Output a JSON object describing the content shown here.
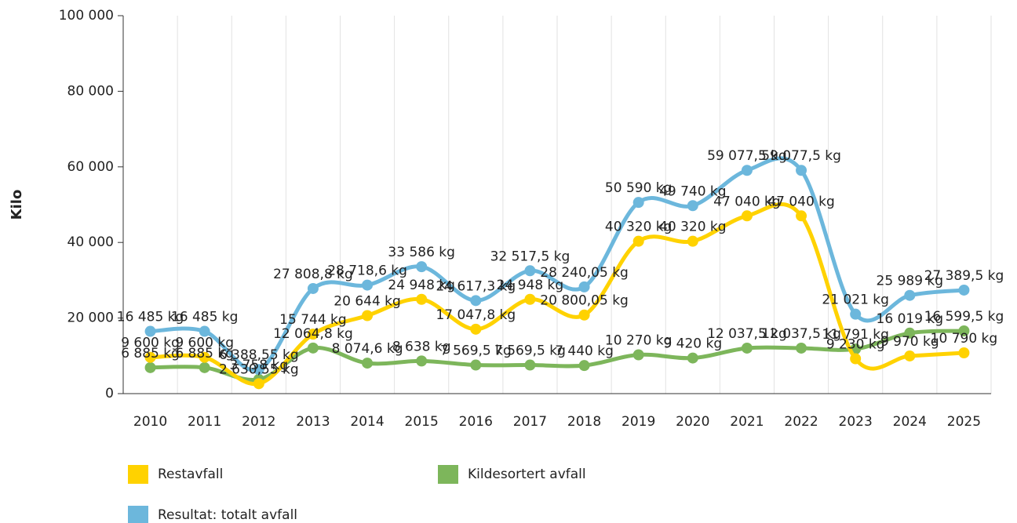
{
  "chart_data": {
    "type": "line",
    "y_label": "Kilo",
    "categories": [
      "2010",
      "2011",
      "2012",
      "2013",
      "2014",
      "2015",
      "2016",
      "2017",
      "2018",
      "2019",
      "2020",
      "2021",
      "2022",
      "2023",
      "2024",
      "2025"
    ],
    "series": [
      {
        "name": "Restavfall",
        "color": "#ffd200",
        "values": [
          9600,
          9600,
          2630.55,
          15744,
          20644,
          24948,
          17047.8,
          24948,
          20800.05,
          40320,
          40320,
          47040,
          47040,
          9230,
          9970,
          10790
        ],
        "value_labels": [
          "9 600 kg",
          "9 600 kg",
          "2 630,55 kg",
          "15 744 kg",
          "20 644 kg",
          "24 948 kg",
          "17 047,8 kg",
          "24 948 kg",
          "20 800,05 kg",
          "40 320 kg",
          "40 320 kg",
          "47 040 kg",
          "47 040 kg",
          "9 230 kg",
          "9 970 kg",
          "10 790 kg"
        ]
      },
      {
        "name": "Kildesortert avfall",
        "color": "#7db65b",
        "values": [
          6885,
          6885,
          3758,
          12064.8,
          8074.6,
          8638,
          7569.5,
          7569.5,
          7440,
          10270,
          9420,
          12037.5,
          12037.5,
          11791,
          16019,
          16599.5
        ],
        "value_labels": [
          "6 885 kg",
          "6 885 kg",
          "3 758 kg",
          "12 064,8 kg",
          "8 074,6 kg",
          "8 638 kg",
          "7 569,5 kg",
          "7 569,5 kg",
          "7 440 kg",
          "10 270 kg",
          "9 420 kg",
          "12 037,5 kg",
          "12 037,5 kg",
          "11 791 kg",
          "16 019 kg",
          "16 599,5 kg"
        ]
      },
      {
        "name": "Resultat: totalt avfall",
        "color": "#6cb7dc",
        "values": [
          16485,
          16485,
          6388.55,
          27808.8,
          28718.6,
          33586,
          24617.3,
          32517.5,
          28240.05,
          50590,
          49740,
          59077.5,
          59077.5,
          21021,
          25989,
          27389.5
        ],
        "value_labels": [
          "16 485 kg",
          "16 485 kg",
          "6 388,55 kg",
          "27 808,8 kg",
          "28 718,6 kg",
          "33 586 kg",
          "24 617,3 kg",
          "32 517,5 kg",
          "28 240,05 kg",
          "50 590 kg",
          "49 740 kg",
          "59 077,5 kg",
          "59 077,5 kg",
          "21 021 kg",
          "25 989 kg",
          "27 389,5 kg"
        ]
      }
    ],
    "ylim": [
      0,
      100000
    ],
    "yticks": [
      0,
      {
        "value": 20000,
        "label": "20 000"
      },
      {
        "value": 40000,
        "label": "40 000"
      },
      {
        "value": 60000,
        "label": "60 000"
      },
      {
        "value": 80000,
        "label": "80 000"
      },
      {
        "value": 100000,
        "label": "100 000"
      }
    ],
    "grid": true
  }
}
